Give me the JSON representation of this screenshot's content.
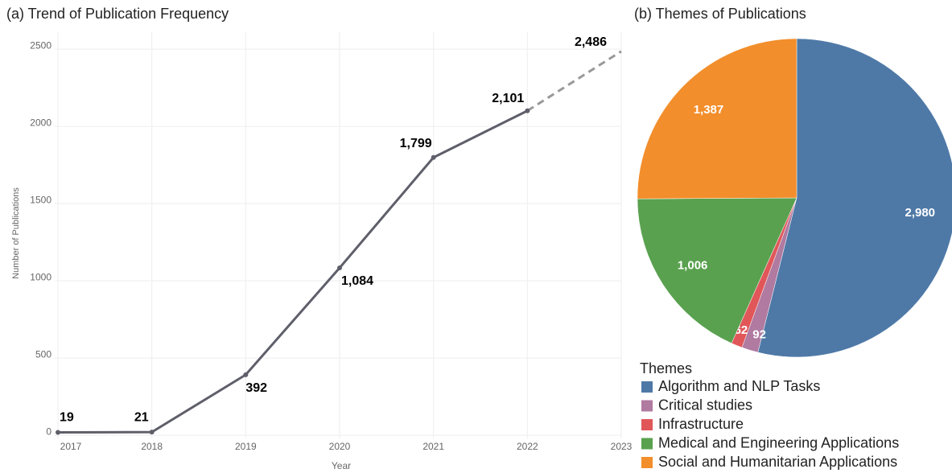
{
  "chart_data": [
    {
      "type": "line",
      "title": "(a) Trend of Publication Frequency",
      "x_label": "Year",
      "y_label": "Number of Publications",
      "x": [
        2017,
        2018,
        2019,
        2020,
        2021,
        2022,
        2023
      ],
      "values": [
        19,
        21,
        392,
        1084,
        1799,
        2101,
        2486
      ],
      "value_labels": [
        "19",
        "21",
        "392",
        "1,084",
        "1,799",
        "2,101",
        "2,486"
      ],
      "color": "#5f5f6b",
      "dashed_last_segment": true,
      "xlim": [
        2017,
        2023
      ],
      "xticks": [
        2017,
        2018,
        2019,
        2020,
        2021,
        2022,
        2023
      ],
      "ylim": [
        -20,
        2610
      ],
      "yticks": [
        0,
        500,
        1000,
        1500,
        2000,
        2500
      ],
      "grid": true
    },
    {
      "type": "pie",
      "title": "(b) Themes of Publications",
      "legend_title": "Themes",
      "categories": [
        "Algorithm and NLP Tasks",
        "Critical studies",
        "Infrastructure",
        "Medical and Engineering Applications",
        "Social and Humanitarian Applications"
      ],
      "values": [
        2980,
        92,
        62,
        1006,
        1387
      ],
      "value_labels": [
        "2,980",
        "92",
        "62",
        "1,006",
        "1,387"
      ],
      "colors": [
        "#4e79a7",
        "#b07aa1",
        "#e15759",
        "#59a14f",
        "#f28e2b"
      ]
    }
  ]
}
